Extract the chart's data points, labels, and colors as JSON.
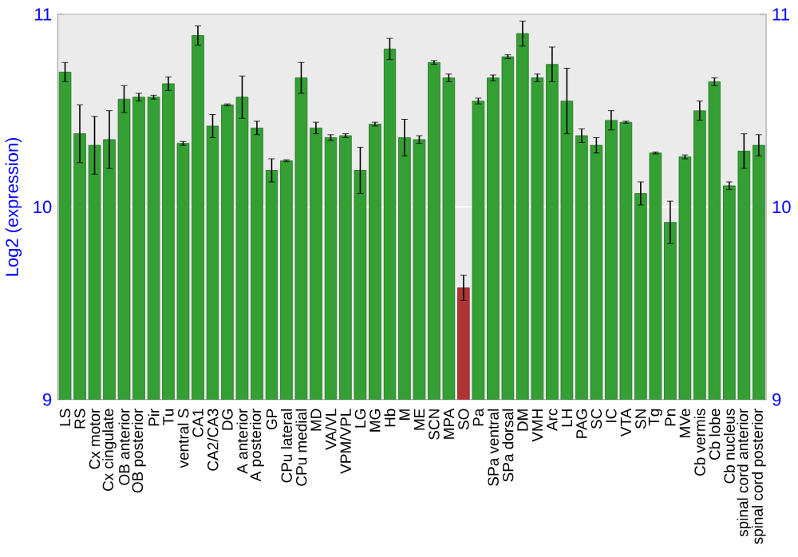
{
  "chart_data": {
    "type": "bar",
    "ylabel": "Log2 (expression)",
    "categories": [
      "LS",
      "RS",
      "Cx motor",
      "Cx cingulate",
      "OB anterior",
      "OB posterior",
      "Pir",
      "Tu",
      "ventral S",
      "CA1",
      "CA2/CA3",
      "DG",
      "A anterior",
      "A posterior",
      "GP",
      "CPu lateral",
      "CPu medial",
      "MD",
      "VA/VL",
      "VPM/VPL",
      "LG",
      "MG",
      "Hb",
      "M",
      "ME",
      "SCN",
      "MPA",
      "SO",
      "Pa",
      "SPa ventral",
      "SPa dorsal",
      "DM",
      "VMH",
      "Arc",
      "LH",
      "PAG",
      "SC",
      "IC",
      "VTA",
      "SN",
      "Tg",
      "Pn",
      "MVe",
      "Cb vermis",
      "Cb lobe",
      "Cb nucleus",
      "spinal cord anterior",
      "spinal cord posterior"
    ],
    "values": [
      10.7,
      10.38,
      10.32,
      10.35,
      10.56,
      10.57,
      10.57,
      10.64,
      10.33,
      10.89,
      10.42,
      10.53,
      10.57,
      10.41,
      10.19,
      10.24,
      10.67,
      10.41,
      10.36,
      10.37,
      10.19,
      10.43,
      10.82,
      10.36,
      10.35,
      10.75,
      10.67,
      9.58,
      10.55,
      10.67,
      10.78,
      10.9,
      10.67,
      10.74,
      10.55,
      10.37,
      10.32,
      10.45,
      10.44,
      10.07,
      10.28,
      9.92,
      10.26,
      10.5,
      10.65,
      10.11,
      10.29,
      10.32
    ],
    "errors": [
      0.05,
      0.15,
      0.15,
      0.15,
      0.07,
      0.02,
      0.01,
      0.035,
      0.01,
      0.05,
      0.06,
      0.005,
      0.11,
      0.035,
      0.06,
      0.005,
      0.08,
      0.03,
      0.015,
      0.01,
      0.12,
      0.01,
      0.055,
      0.095,
      0.02,
      0.01,
      0.02,
      0.065,
      0.015,
      0.015,
      0.01,
      0.065,
      0.02,
      0.09,
      0.17,
      0.035,
      0.04,
      0.05,
      0.005,
      0.06,
      0.005,
      0.11,
      0.01,
      0.05,
      0.02,
      0.02,
      0.09,
      0.055
    ],
    "colors": [
      "#34a034",
      "#34a034",
      "#34a034",
      "#34a034",
      "#34a034",
      "#34a034",
      "#34a034",
      "#34a034",
      "#34a034",
      "#34a034",
      "#34a034",
      "#34a034",
      "#34a034",
      "#34a034",
      "#34a034",
      "#34a034",
      "#34a034",
      "#34a034",
      "#34a034",
      "#34a034",
      "#34a034",
      "#34a034",
      "#34a034",
      "#34a034",
      "#34a034",
      "#34a034",
      "#34a034",
      "#b03434",
      "#34a034",
      "#34a034",
      "#34a034",
      "#34a034",
      "#34a034",
      "#34a034",
      "#34a034",
      "#34a034",
      "#34a034",
      "#34a034",
      "#34a034",
      "#34a034",
      "#34a034",
      "#34a034",
      "#34a034",
      "#34a034",
      "#34a034",
      "#34a034",
      "#34a034",
      "#34a034"
    ],
    "ylim": [
      9,
      11
    ],
    "yticks": [
      9,
      10,
      11
    ],
    "y2lim": [
      9,
      11
    ],
    "y2ticks": [
      9,
      10,
      11
    ],
    "grid": "y"
  }
}
